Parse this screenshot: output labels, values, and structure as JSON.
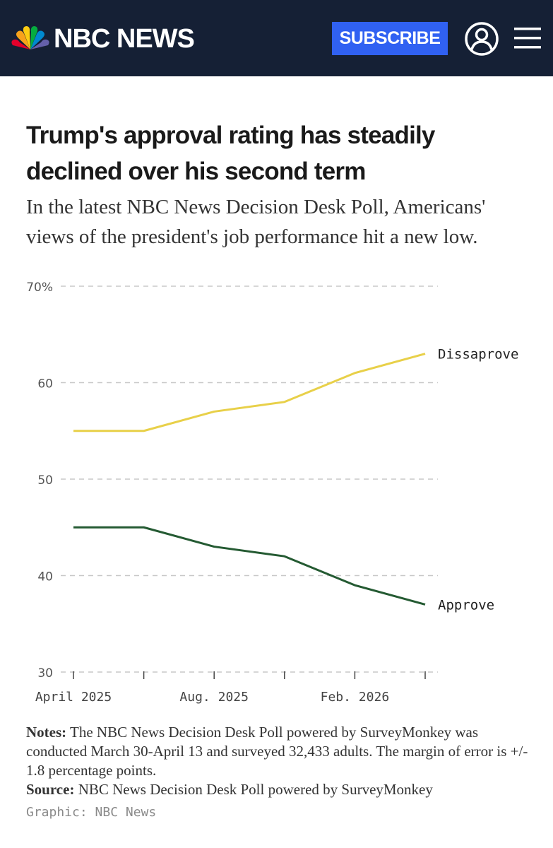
{
  "header": {
    "brand": "NBC NEWS",
    "subscribe_label": "SUBSCRIBE",
    "logo_icon": "peacock-logo-icon",
    "account_icon": "user-account-icon",
    "menu_icon": "hamburger-menu-icon",
    "bg_color": "#152035",
    "accent_color": "#3061f2"
  },
  "article": {
    "headline": "Trump's approval rating has steadily declined over his second term",
    "dek": "In the latest NBC News Decision Desk Poll, Americans' views of the president's job performance hit a new low."
  },
  "chart_data": {
    "type": "line",
    "title": "Trump's approval rating has steadily declined over his second term",
    "xlabel": "",
    "ylabel": "",
    "x": [
      "April 2025",
      "",
      "Aug. 2025",
      "",
      "Feb. 2026",
      ""
    ],
    "x_tick_labels": [
      "April 2025",
      "Aug. 2025",
      "Feb. 2026"
    ],
    "y_ticks": [
      "30",
      "40",
      "50",
      "60",
      "70%"
    ],
    "y_tick_values": [
      30,
      40,
      50,
      60,
      70
    ],
    "ylim": [
      30,
      70
    ],
    "grid": true,
    "series": [
      {
        "name": "Dissaprove",
        "color": "#e8d049",
        "values": [
          55,
          55,
          57,
          58,
          61,
          63
        ]
      },
      {
        "name": "Approve",
        "color": "#245a32",
        "values": [
          45,
          45,
          43,
          42,
          39,
          37
        ]
      }
    ]
  },
  "notes": {
    "notes_label": "Notes:",
    "notes_text": " The NBC News Decision Desk Poll powered by SurveyMonkey was conducted March 30-April 13 and surveyed 32,433 adults. The margin of error is +/- 1.8 percentage points.",
    "source_label": "Source:",
    "source_text": " NBC News Decision Desk Poll powered by SurveyMonkey",
    "credit": "Graphic: NBC News"
  }
}
